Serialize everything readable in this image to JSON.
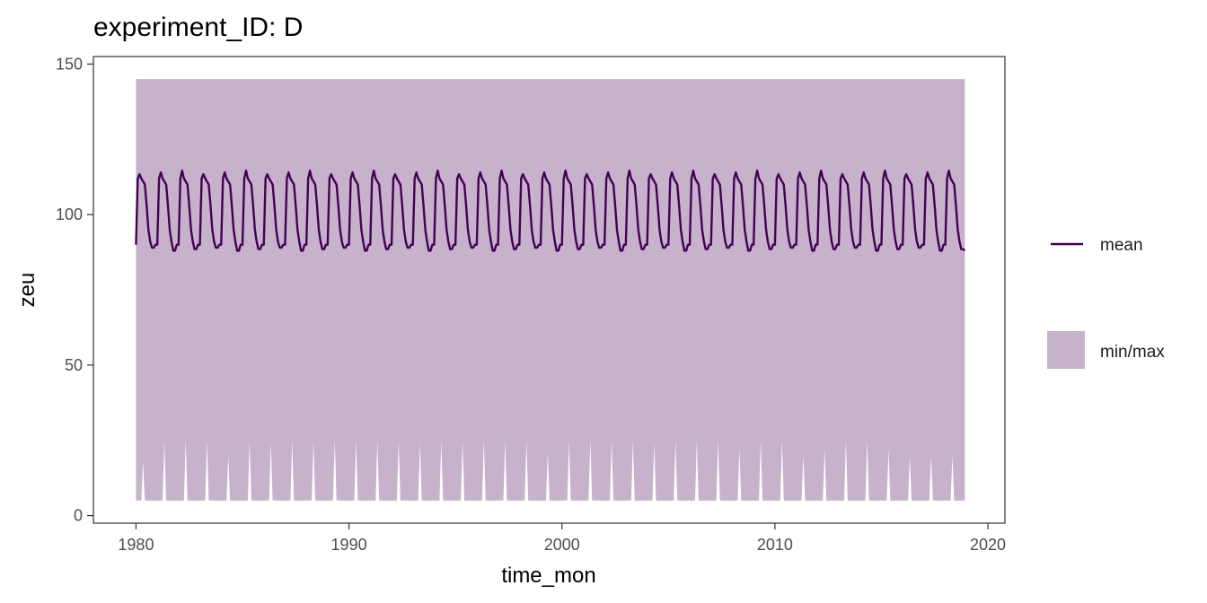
{
  "chart_data": {
    "type": "line",
    "title": "experiment_ID: D",
    "xlabel": "time_mon",
    "ylabel": "zeu",
    "xlim": [
      1978.0,
      2020.8
    ],
    "ylim": [
      -2.5,
      152.5
    ],
    "x_ticks": [
      1980,
      1990,
      2000,
      2010,
      2020
    ],
    "y_ticks": [
      0,
      50,
      100,
      150
    ],
    "x_tick_labels": [
      "1980",
      "1990",
      "2000",
      "2010",
      "2020"
    ],
    "y_tick_labels": [
      "0",
      "50",
      "100",
      "150"
    ],
    "x_start": 1980.0,
    "n_months": 468,
    "grid": false,
    "legend_position": "right",
    "series": [
      {
        "name": "mean",
        "kind": "line",
        "color": "#440154",
        "seasonal_profile": [
          90,
          112,
          114,
          112,
          111,
          110,
          103,
          95,
          91,
          89,
          89,
          90
        ],
        "first_value": 90,
        "last_value": 88
      },
      {
        "name": "min/max",
        "kind": "ribbon",
        "color": "#c6b2cb",
        "max_value": 145,
        "min_baseline": 5,
        "min_peaks": [
          18,
          25,
          25,
          25,
          20,
          25,
          24,
          25,
          25,
          25,
          25,
          25,
          25,
          24,
          25,
          25,
          25,
          25,
          25,
          21,
          25,
          25,
          25,
          25,
          24,
          25,
          25,
          25,
          22,
          25,
          25,
          20,
          22,
          25,
          25,
          22,
          20,
          20,
          20
        ],
        "min_peak_month": 4
      }
    ]
  }
}
